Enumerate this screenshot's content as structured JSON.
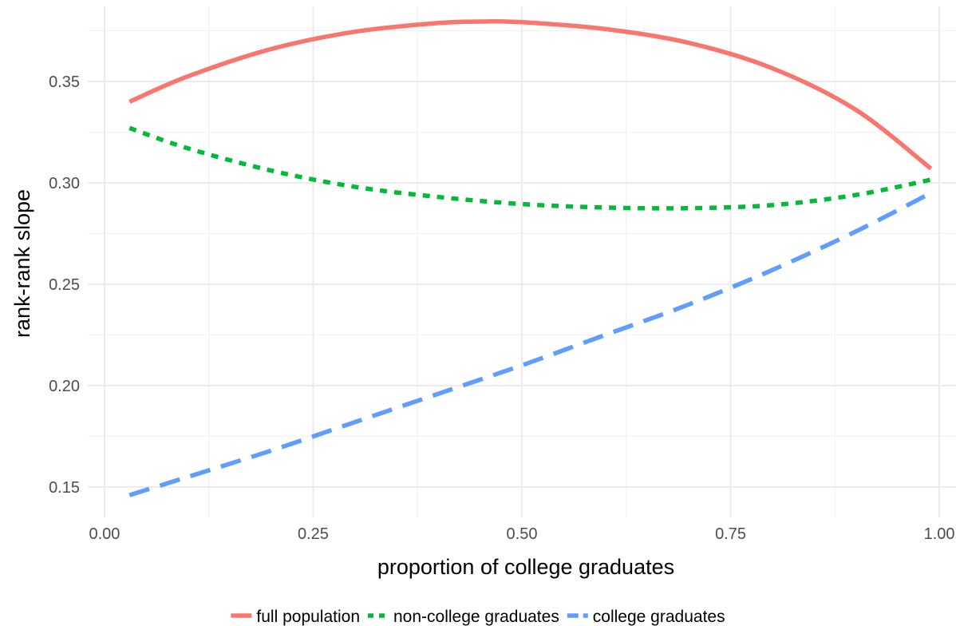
{
  "chart_data": {
    "type": "line",
    "xlabel": "proportion of college graduates",
    "ylabel": "rank-rank slope",
    "xlim": [
      -0.02,
      1.02
    ],
    "ylim": [
      0.135,
      0.387
    ],
    "x_ticks": [
      0.0,
      0.25,
      0.5,
      0.75,
      1.0
    ],
    "x_tick_labels": [
      "0.00",
      "0.25",
      "0.50",
      "0.75",
      "1.00"
    ],
    "y_ticks": [
      0.15,
      0.2,
      0.25,
      0.3,
      0.35
    ],
    "y_tick_labels": [
      "0.15",
      "0.20",
      "0.25",
      "0.30",
      "0.35"
    ],
    "grid": true,
    "legend_position": "bottom",
    "series": [
      {
        "name": "full population",
        "color": "#F8766D",
        "dash": "solid",
        "x": [
          0.03,
          0.1,
          0.2,
          0.3,
          0.4,
          0.45,
          0.5,
          0.6,
          0.7,
          0.8,
          0.9,
          0.99
        ],
        "y": [
          0.34,
          0.3525,
          0.366,
          0.3745,
          0.3788,
          0.3795,
          0.3792,
          0.3758,
          0.369,
          0.3565,
          0.336,
          0.307
        ]
      },
      {
        "name": "non-college graduates",
        "color": "#00BA38",
        "dash": "dotted",
        "x": [
          0.03,
          0.1,
          0.2,
          0.3,
          0.4,
          0.5,
          0.6,
          0.7,
          0.8,
          0.9,
          0.99
        ],
        "y": [
          0.327,
          0.317,
          0.306,
          0.298,
          0.293,
          0.2895,
          0.2878,
          0.2875,
          0.289,
          0.294,
          0.3015
        ]
      },
      {
        "name": "college graduates",
        "color": "#619CFF",
        "dash": "dashed",
        "x": [
          0.03,
          0.1,
          0.2,
          0.3,
          0.4,
          0.5,
          0.6,
          0.7,
          0.8,
          0.9,
          0.99
        ],
        "y": [
          0.146,
          0.155,
          0.168,
          0.182,
          0.196,
          0.21,
          0.225,
          0.24,
          0.257,
          0.276,
          0.295
        ]
      }
    ]
  }
}
